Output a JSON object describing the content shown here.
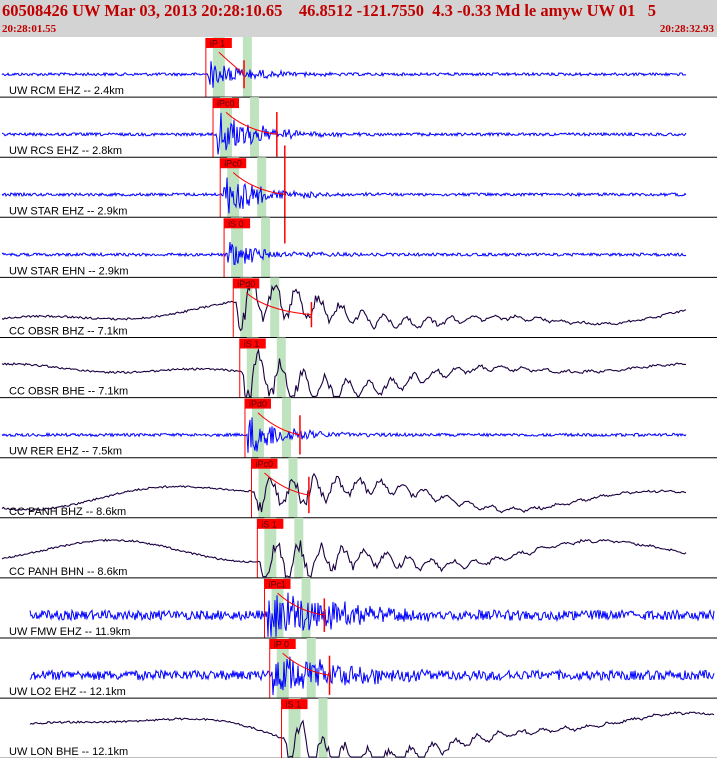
{
  "header": {
    "title": "60508426 UW Mar 03, 2013 20:28:10.65    46.8512 -121.7550  4.3 -0.33 Md le amyw UW 01   5",
    "start_time": "20:28:01.55",
    "end_time": "20:28:32.93"
  },
  "colors": {
    "header_bg": "#d3d3d3",
    "header_text": "#c00000",
    "trace_short_period": "#0000ff",
    "trace_broadband": "#1a0040",
    "pick_box": "#ff0000",
    "pick_window": "#bfe3bf",
    "divider": "#000000"
  },
  "traces": [
    {
      "label": "UW RCM EHZ -- 2.4km",
      "pick": "iP 1",
      "pick_t": 3.7,
      "type": "sp",
      "scale": 0.55,
      "coda_t": 4.4,
      "coda_ht": 1.0
    },
    {
      "label": "UW RCS EHZ -- 2.8km",
      "pick": "iPc0",
      "pick_t": 3.85,
      "type": "sp",
      "scale": 1.0,
      "coda_t": 7.6,
      "coda_ht": 1.6
    },
    {
      "label": "UW STAR EHZ -- 2.9km",
      "pick": "iPc0",
      "pick_t": 4.0,
      "type": "sp",
      "scale": 0.9,
      "coda_t": 7.7,
      "coda_ht": 3.5
    },
    {
      "label": "UW STAR EHN -- 2.9km",
      "pick": "iS 0",
      "pick_t": 3.9,
      "type": "sp",
      "scale": 0.55,
      "coda_t": null,
      "coda_ht": 0
    },
    {
      "label": "CC OBSR BHZ -- 7.1km",
      "pick": "iPd0",
      "pick_t": 4.2,
      "type": "bb",
      "scale": 1.0,
      "coda_t": 9.4,
      "coda_ht": 0.9
    },
    {
      "label": "CC OBSR BHE -- 7.1km",
      "pick": "iS 1",
      "pick_t": 4.3,
      "type": "bb",
      "scale": 1.0,
      "coda_t": null,
      "coda_ht": 0
    },
    {
      "label": "UW RER EHZ -- 7.5km",
      "pick": "iPd0",
      "pick_t": 4.3,
      "type": "sp",
      "scale": 0.8,
      "coda_t": 6.5,
      "coda_ht": 1.4
    },
    {
      "label": "CC PANH BHZ -- 8.6km",
      "pick": "iPc0",
      "pick_t": 4.4,
      "type": "bb",
      "scale": 0.8,
      "coda_t": 6.8,
      "coda_ht": 1.3
    },
    {
      "label": "CC PANH BHN -- 8.6km",
      "pick": "iS 1",
      "pick_t": 4.45,
      "type": "bb",
      "scale": 0.9,
      "coda_t": null,
      "coda_ht": 0
    },
    {
      "label": "UW FMW EHZ -- 11.9km",
      "pick": "iPc1",
      "pick_t": 4.6,
      "type": "sp",
      "scale": 1.1,
      "coda_t": 7.1,
      "coda_ht": 1.2
    },
    {
      "label": "UW LO2 EHZ -- 12.1km",
      "pick": "iP 0",
      "pick_t": 4.6,
      "type": "sp",
      "scale": 0.9,
      "coda_t": 7.1,
      "coda_ht": 1.4
    },
    {
      "label": "UW LON BHE -- 12.1km",
      "pick": "iS 1",
      "pick_t": 5.1,
      "type": "bb",
      "scale": 1.0,
      "coda_t": null,
      "coda_ht": 0
    }
  ]
}
